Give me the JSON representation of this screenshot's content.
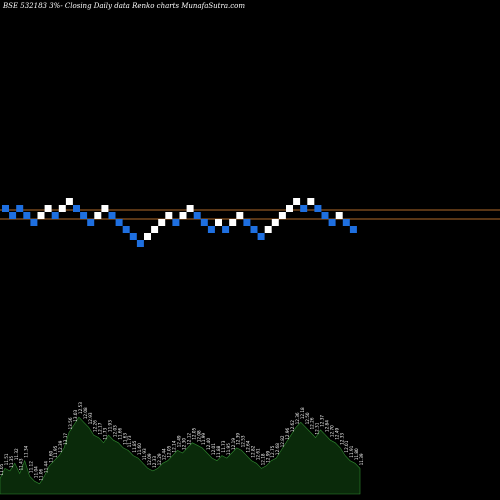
{
  "header": {
    "title": "BSE 532183 3%-  Closing Daily data  Renko  charts MunafaSutra.com"
  },
  "chart_data": [
    {
      "type": "renko",
      "title": "BSE 532183 3%-  Closing Daily data  Renko  charts MunafaSutra.com",
      "up_color": "#ffffff",
      "down_color": "#1e6fe0",
      "reference_line_color": "#b06a2a",
      "reference_lines": [
        12.45,
        12.05
      ],
      "brick_size": 0.31,
      "bricks": [
        {
          "direction": "down",
          "value": 12.67
        },
        {
          "direction": "down",
          "value": 12.36
        },
        {
          "direction": "down",
          "value": 12.67
        },
        {
          "direction": "down",
          "value": 12.36
        },
        {
          "direction": "down",
          "value": 12.05
        },
        {
          "direction": "up",
          "value": 12.36
        },
        {
          "direction": "up",
          "value": 12.67
        },
        {
          "direction": "down",
          "value": 12.36
        },
        {
          "direction": "up",
          "value": 12.67
        },
        {
          "direction": "up",
          "value": 12.98
        },
        {
          "direction": "down",
          "value": 12.67
        },
        {
          "direction": "down",
          "value": 12.36
        },
        {
          "direction": "down",
          "value": 12.05
        },
        {
          "direction": "up",
          "value": 12.36
        },
        {
          "direction": "up",
          "value": 12.67
        },
        {
          "direction": "down",
          "value": 12.36
        },
        {
          "direction": "down",
          "value": 12.05
        },
        {
          "direction": "down",
          "value": 11.74
        },
        {
          "direction": "down",
          "value": 11.43
        },
        {
          "direction": "down",
          "value": 11.12
        },
        {
          "direction": "up",
          "value": 11.43
        },
        {
          "direction": "up",
          "value": 11.74
        },
        {
          "direction": "up",
          "value": 12.05
        },
        {
          "direction": "up",
          "value": 12.36
        },
        {
          "direction": "down",
          "value": 12.05
        },
        {
          "direction": "up",
          "value": 12.36
        },
        {
          "direction": "up",
          "value": 12.67
        },
        {
          "direction": "down",
          "value": 12.36
        },
        {
          "direction": "down",
          "value": 12.05
        },
        {
          "direction": "down",
          "value": 11.74
        },
        {
          "direction": "up",
          "value": 12.05
        },
        {
          "direction": "down",
          "value": 11.74
        },
        {
          "direction": "up",
          "value": 12.05
        },
        {
          "direction": "up",
          "value": 12.36
        },
        {
          "direction": "down",
          "value": 12.05
        },
        {
          "direction": "down",
          "value": 11.74
        },
        {
          "direction": "down",
          "value": 11.43
        },
        {
          "direction": "up",
          "value": 11.74
        },
        {
          "direction": "up",
          "value": 12.05
        },
        {
          "direction": "up",
          "value": 12.36
        },
        {
          "direction": "up",
          "value": 12.67
        },
        {
          "direction": "up",
          "value": 12.98
        },
        {
          "direction": "down",
          "value": 12.67
        },
        {
          "direction": "up",
          "value": 12.98
        },
        {
          "direction": "down",
          "value": 12.67
        },
        {
          "direction": "down",
          "value": 12.36
        },
        {
          "direction": "down",
          "value": 12.05
        },
        {
          "direction": "up",
          "value": 12.36
        },
        {
          "direction": "down",
          "value": 12.05
        },
        {
          "direction": "down",
          "value": 11.74
        }
      ]
    },
    {
      "type": "area",
      "fill_color": "#0a2a0a",
      "stroke_color": "#2f8a2f",
      "label_color": "#ffffff",
      "values": [
        11.2,
        11.6,
        11.5,
        11.8,
        11.4,
        11.9,
        11.3,
        11.1,
        11.0,
        11.3,
        11.7,
        11.9,
        12.1,
        12.4,
        13.0,
        13.3,
        13.6,
        13.4,
        13.2,
        12.9,
        12.8,
        12.6,
        12.9,
        12.7,
        12.6,
        12.4,
        12.3,
        12.1,
        12.0,
        11.8,
        11.6,
        11.5,
        11.6,
        11.8,
        11.9,
        12.1,
        12.3,
        12.2,
        12.4,
        12.6,
        12.5,
        12.4,
        12.2,
        12.0,
        11.9,
        12.1,
        12.0,
        12.2,
        12.4,
        12.3,
        12.1,
        11.9,
        11.8,
        11.6,
        11.7,
        11.9,
        12.0,
        12.3,
        12.6,
        12.9,
        13.2,
        13.4,
        13.2,
        13.0,
        12.8,
        13.1,
        12.9,
        12.7,
        12.6,
        12.4,
        12.1,
        11.9,
        11.8,
        11.6
      ],
      "labels": [
        "11.05",
        "11.51",
        "11.35",
        "11.32",
        "11.43",
        "11.34",
        "11.12",
        "11.04",
        "11.06",
        "11.44",
        "11.60",
        "11.95",
        "12.39",
        "13.17",
        "13.56",
        "13.03",
        "12.53",
        "12.08",
        "12.93",
        "12.26",
        "12.17",
        "11.73",
        "11.93",
        "12.03",
        "11.66",
        "11.63",
        "11.73",
        "11.85",
        "11.60",
        "11.93",
        "12.09",
        "12.33",
        "12.29",
        "12.44",
        "12.05",
        "12.14",
        "12.49",
        "12.30",
        "12.12",
        "12.05",
        "12.08",
        "11.99",
        "12.40",
        "12.01",
        "11.88",
        "11.73",
        "11.95",
        "12.19",
        "12.39",
        "12.53",
        "12.64",
        "12.82",
        "12.61",
        "12.18",
        "12.99",
        "12.75",
        "12.68",
        "12.82",
        "12.96",
        "12.62",
        "12.36",
        "12.18",
        "12.50",
        "12.26",
        "12.31",
        "12.37",
        "12.84",
        "12.70",
        "12.49",
        "12.33",
        "12.01",
        "11.91",
        "11.80",
        "11.39"
      ]
    }
  ]
}
